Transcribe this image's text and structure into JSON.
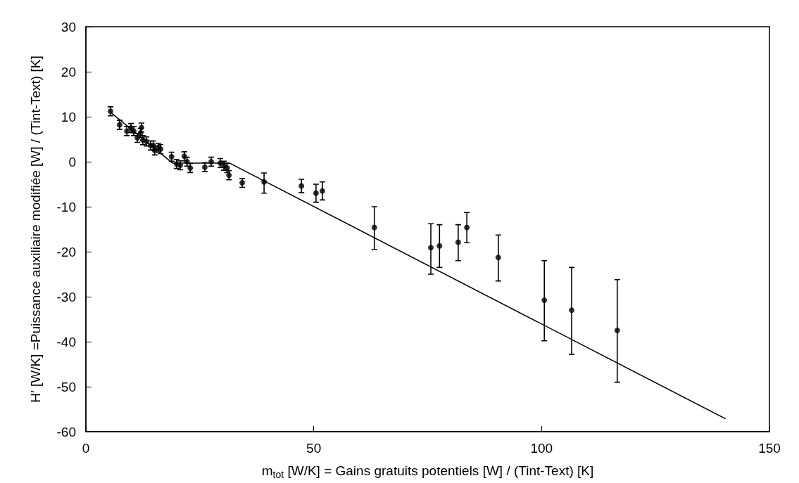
{
  "chart_data": {
    "type": "scatter",
    "xlabel": "m$_{tot}$ [W/K] = Gains gratuits potentiels [W] / (Tint-Text) [K]",
    "ylabel": "H' [W/K] =Puissance auxiliaire modifiée [W] / (Tint-Text) [K]",
    "xlim": [
      0,
      150
    ],
    "xticks": [
      0,
      50,
      100,
      150
    ],
    "ylim": [
      -60,
      30
    ],
    "yticks": [
      -60,
      -50,
      -40,
      -30,
      -20,
      -10,
      0,
      10,
      20,
      30
    ],
    "grid": false,
    "marker": "circle",
    "series": [
      {
        "color": "#000000",
        "x": [
          5.4,
          7.4,
          9,
          9.9,
          10.5,
          11.3,
          12,
          12.2,
          12.5,
          13.3,
          14.2,
          14.8,
          15.1,
          15.9,
          16.4,
          18.8,
          19.9,
          20.7,
          21.6,
          22.2,
          22.9,
          26.1,
          27.5,
          29.5,
          30.3,
          31,
          31.4,
          34.3,
          39.1,
          47.3,
          50.5,
          51.9,
          63.3,
          75.7,
          77.6,
          81.7,
          83.6,
          90.5,
          100.6,
          106.6,
          116.6
        ],
        "values": [
          11.2,
          8.2,
          6.8,
          7.5,
          6.8,
          5.3,
          6.4,
          7.6,
          4.8,
          4.5,
          3.6,
          3.6,
          2.5,
          3.1,
          2.8,
          1.1,
          -0.5,
          -0.8,
          1.2,
          0,
          -1.4,
          -1.2,
          0,
          -0.3,
          -0.9,
          -1.4,
          -3,
          -4.7,
          -4.5,
          -5.4,
          -7,
          -6.5,
          -14.6,
          -19.1,
          -18.7,
          -17.9,
          -14.6,
          -21.3,
          -30.8,
          -33,
          -37.5
        ],
        "errors": [
          1,
          1,
          1,
          1,
          1,
          1,
          1,
          1,
          1,
          1,
          1,
          1,
          1,
          1,
          1,
          1,
          1,
          1,
          1,
          1,
          1,
          1,
          1,
          1,
          1,
          1,
          1,
          1,
          [
            -7,
            -2.5
          ],
          1.5,
          2,
          2,
          [
            -19.5,
            -10
          ],
          [
            -25,
            -13.8
          ],
          [
            -23.5,
            -14
          ],
          [
            -22,
            -14
          ],
          [
            -18,
            -11.3
          ],
          [
            -26.5,
            -16.3
          ],
          [
            -39.8,
            -22
          ],
          [
            -42.8,
            -23.5
          ],
          [
            -49,
            -26.2
          ]
        ]
      },
      {
        "type": "line",
        "color": "#000000",
        "marker": "none",
        "x": [
          5.4,
          19,
          31.5,
          140.3
        ],
        "values": [
          11,
          -0.3,
          -0.3,
          -57.1
        ]
      }
    ]
  }
}
